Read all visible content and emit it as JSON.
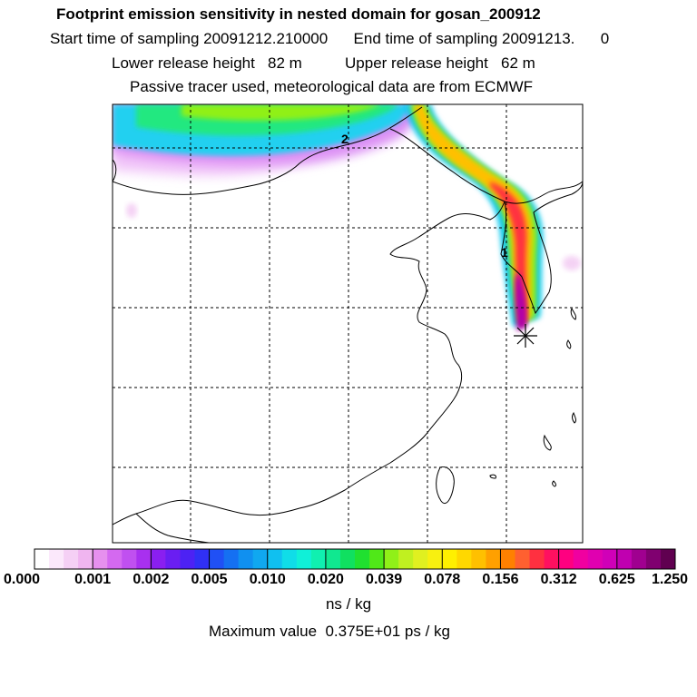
{
  "header": {
    "title": "Footprint emission sensitivity in nested domain for gosan_200912",
    "sampling_line": "Start time of sampling 20091212.210000      End time of sampling 20091213.      0",
    "release_line": "Lower release height   82 m          Upper release height   62 m",
    "tracer_line": "Passive tracer used, meteorological data are from ECMWF"
  },
  "map": {
    "receptor_marker": "receptor-star-icon",
    "labels": [
      "2",
      "1"
    ]
  },
  "colorbar": {
    "tick_labels": [
      "0.000",
      "0.001",
      "0.002",
      "0.005",
      "0.010",
      "0.020",
      "0.039",
      "0.078",
      "0.156",
      "0.312",
      "0.625",
      "1.250"
    ],
    "colors": [
      "#ffffff",
      "#fbe8fb",
      "#f5d0f5",
      "#f0b5f0",
      "#e690ee",
      "#d469f0",
      "#c050f0",
      "#a830ef",
      "#8a1ff0",
      "#6a1ef2",
      "#4d22f4",
      "#3030f5",
      "#2050f5",
      "#1570f2",
      "#1090f0",
      "#10a8f0",
      "#10c0f0",
      "#10dde8",
      "#10f0d8",
      "#10f0b0",
      "#10e890",
      "#10e060",
      "#20e030",
      "#50e818",
      "#90f018",
      "#c0f020",
      "#e0f020",
      "#f8f010",
      "#fff000",
      "#ffd800",
      "#ffc000",
      "#ffa000",
      "#ff8000",
      "#ff6030",
      "#ff3040",
      "#ff1060",
      "#ff0080",
      "#f000a0",
      "#e000b0",
      "#d000b8",
      "#c000b0",
      "#a00090",
      "#800070",
      "#600050"
    ],
    "units": "ns / kg"
  },
  "footer": {
    "max_value": "Maximum value  0.375E+01 ps / kg"
  }
}
